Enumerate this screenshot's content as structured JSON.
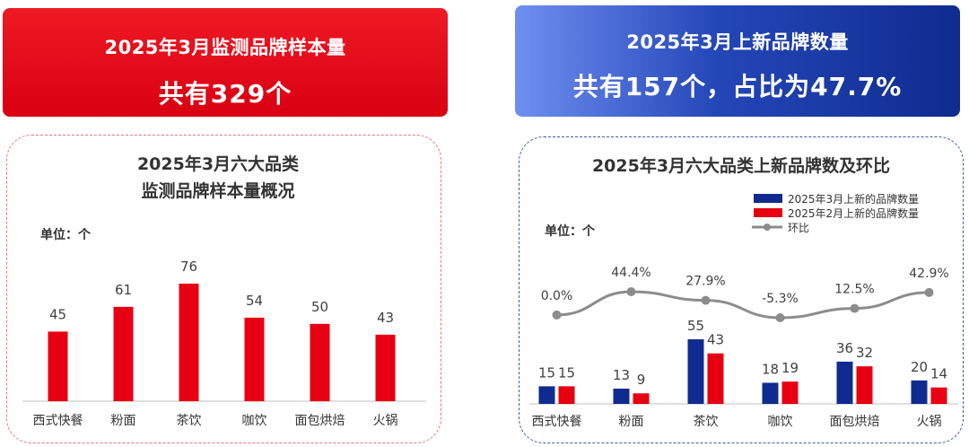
{
  "left_banner": {
    "line1": "2025年3月监测品牌样本量",
    "line2": "共有329个"
  },
  "right_banner": {
    "line1": "2025年3月上新品牌数量",
    "line2": "共有157个，占比为47.7%"
  },
  "colors": {
    "red": "#e60012",
    "navy": "#0f2b8f",
    "grey_line": "#8c8c8c"
  },
  "chart_data": [
    {
      "type": "bar",
      "title_lines": [
        "2025年3月六大品类",
        "监测品牌样本量概况"
      ],
      "unit_label": "单位：个",
      "categories": [
        "西式快餐",
        "粉面",
        "茶饮",
        "咖饮",
        "面包烘焙",
        "火锅"
      ],
      "values": [
        45,
        61,
        76,
        54,
        50,
        43
      ],
      "ylim": [
        0,
        90
      ],
      "grid": false
    },
    {
      "type": "bar",
      "title": "2025年3月六大品类上新品牌数及环比",
      "unit_label": "单位：个",
      "categories": [
        "西式快餐",
        "粉面",
        "茶饮",
        "咖饮",
        "面包烘焙",
        "火锅"
      ],
      "series": [
        {
          "name": "2025年3月上新的品牌数量",
          "values": [
            15,
            13,
            55,
            18,
            36,
            20
          ]
        },
        {
          "name": "2025年2月上新的品牌数量",
          "values": [
            15,
            9,
            43,
            19,
            32,
            14
          ]
        }
      ],
      "line_series": {
        "name": "环比",
        "values": [
          0.0,
          44.4,
          27.9,
          -5.3,
          12.5,
          42.9
        ],
        "labels": [
          "0.0%",
          "44.4%",
          "27.9%",
          "-5.3%",
          "12.5%",
          "42.9%"
        ]
      },
      "legend_position": "top-right",
      "grid": false
    }
  ]
}
